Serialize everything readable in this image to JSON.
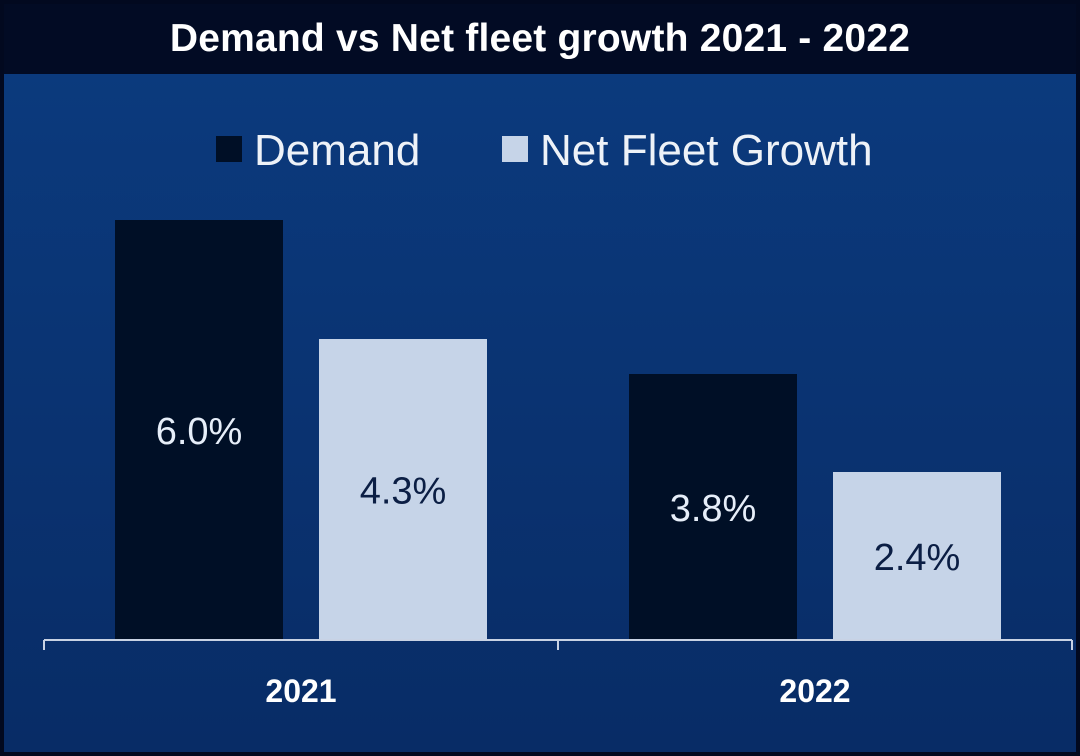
{
  "chart_data": {
    "type": "bar",
    "title": "Demand vs Net fleet growth 2021 - 2022",
    "categories": [
      "2021",
      "2022"
    ],
    "series": [
      {
        "name": "Demand",
        "values": [
          6.0,
          3.8
        ],
        "labels": [
          "6.0%",
          "3.8%"
        ],
        "color": "#000f26",
        "label_color": "#e6eef9"
      },
      {
        "name": "Net Fleet Growth",
        "values": [
          4.3,
          2.4
        ],
        "labels": [
          "4.3%",
          "2.4%"
        ],
        "color": "#c6d4e8",
        "label_color": "#0b1e44"
      }
    ],
    "ylim": [
      0,
      6.0
    ],
    "legend_position": "top",
    "grid": false,
    "colors": {
      "background": "#0a3474",
      "title_bar": "#020b24",
      "axis": "#c8d2e4"
    }
  }
}
